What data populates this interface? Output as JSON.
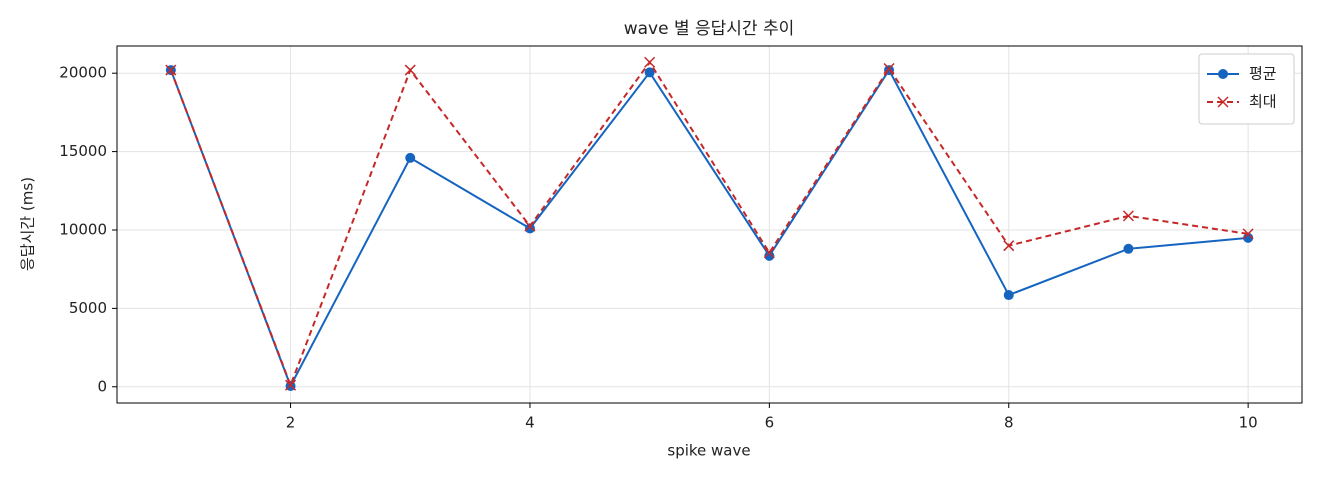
{
  "chart_data": {
    "type": "line",
    "title": "wave 별 응답시간 추이",
    "xlabel": "spike wave",
    "ylabel": "응답시간 (ms)",
    "x": [
      1,
      2,
      3,
      4,
      5,
      6,
      7,
      8,
      9,
      10
    ],
    "series": [
      {
        "name": "평균",
        "color": "#1565c0",
        "marker": "o",
        "dash": false,
        "values": [
          20200,
          50,
          14600,
          10100,
          20050,
          8350,
          20200,
          5850,
          8800,
          9500
        ]
      },
      {
        "name": "최대",
        "color": "#c62828",
        "marker": "x",
        "dash": true,
        "values": [
          20200,
          100,
          20200,
          10250,
          20700,
          8550,
          20300,
          9000,
          10900,
          9750
        ]
      }
    ],
    "xlim": [
      0.55,
      10.45
    ],
    "xticks": [
      2,
      4,
      6,
      8,
      10
    ],
    "ylim": [
      -1035,
      21735
    ],
    "yticks": [
      0,
      5000,
      10000,
      15000,
      20000
    ],
    "grid": true,
    "legend": "upper right"
  }
}
